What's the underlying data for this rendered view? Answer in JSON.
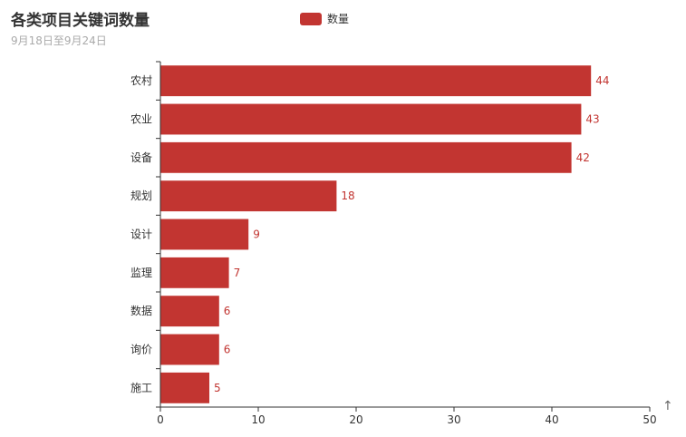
{
  "header": {
    "title": "各类项目关键词数量",
    "subtitle": "9月18日至9月24日"
  },
  "legend": {
    "label": "数量"
  },
  "colors": {
    "bar": "#c23531",
    "axis": "#333333"
  },
  "toolbox": {
    "icon": "arrow-up-icon",
    "glyph": "↑"
  },
  "chart_data": {
    "type": "bar",
    "orientation": "horizontal",
    "categories": [
      "农村",
      "农业",
      "设备",
      "规划",
      "设计",
      "监理",
      "数据",
      "询价",
      "施工"
    ],
    "series": [
      {
        "name": "数量",
        "values": [
          44,
          43,
          42,
          18,
          9,
          7,
          6,
          6,
          5
        ]
      }
    ],
    "xlim": [
      0,
      50
    ],
    "xticks": [
      0,
      10,
      20,
      30,
      40,
      50
    ],
    "grid": false,
    "legend_position": "top-center"
  }
}
